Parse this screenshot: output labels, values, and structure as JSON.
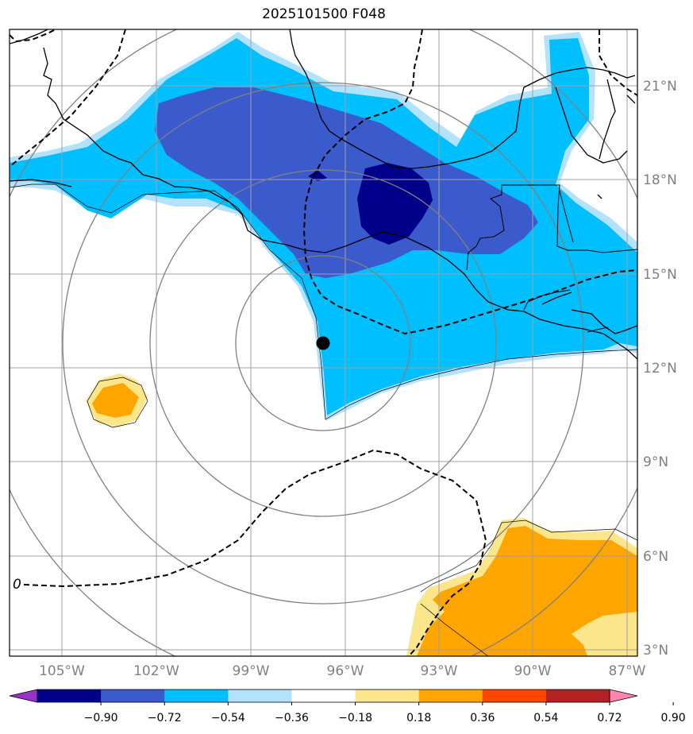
{
  "title": "2025101500 F048",
  "map": {
    "longitude_labels": [
      "105°W",
      "102°W",
      "99°W",
      "96°W",
      "93°W",
      "90°W",
      "87°W"
    ],
    "latitude_labels": [
      "21°N",
      "18°N",
      "15°N",
      "12°N",
      "9°N",
      "6°N",
      "3°N"
    ],
    "contour_label": "0",
    "center_marker": {
      "lon": -96.8,
      "lat": 12.8
    }
  },
  "colorbar": {
    "tick_labels": [
      "−0.90",
      "−0.72",
      "−0.54",
      "−0.36",
      "−0.18",
      "0.18",
      "0.36",
      "0.54",
      "0.72",
      "0.90"
    ],
    "colors": [
      "#9932cc",
      "#00008b",
      "#3b5bcc",
      "#00bfff",
      "#b3e2fc",
      "#ffffff",
      "#fce68c",
      "#ffa500",
      "#ff4500",
      "#b22222",
      "#ff85b0"
    ]
  },
  "colors": {
    "dark_navy": "#00008b",
    "mid_blue": "#3b5bcc",
    "sky_blue": "#00bfff",
    "light_blue": "#b3e2fc",
    "pale_yellow": "#fce68c",
    "orange": "#ffa500"
  }
}
